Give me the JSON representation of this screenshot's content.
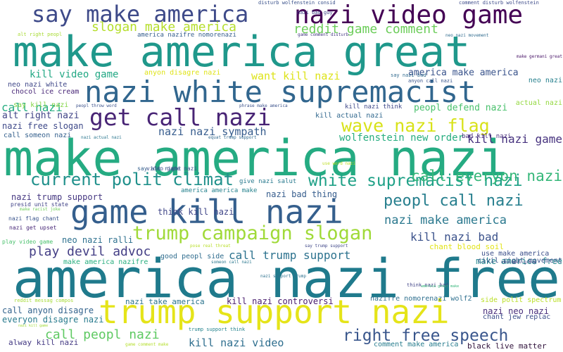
{
  "cloud": {
    "big": [
      "make america great",
      "make america nazi",
      "america nazi free",
      "nazi white supremacist",
      "game kill nazi",
      "trump support nazi",
      "nazi video game",
      "say make america",
      "get call nazi",
      "wave nazi flag",
      "trump campaign slogan",
      "current polit climat",
      "white supremacist nazi",
      "peopl call nazi",
      "right free speech",
      "slogan make america",
      "reddit game comment",
      "call peopl nazi",
      "play devil advoc",
      "nazi make america",
      "call everyon nazi",
      "kill nazi game",
      "kill nazi bad",
      "nazi nazi sympath",
      "kill nazi video",
      "call trump support",
      "want kill nazi",
      "wolfenstein new order",
      "peopl defend nazi",
      "america make america"
    ],
    "mid": [
      "kill video game",
      "alt right nazi",
      "nazi free slogan",
      "nazi trump support",
      "neo nazi ralli",
      "kill nazi controversi",
      "nazi neo nazi",
      "call anyon disagre",
      "everyon disagre nazi",
      "alway kill nazi",
      "comment make america",
      "black live matter",
      "call nazi",
      "neo nazi white",
      "chocol ice cream",
      "say kill nazi",
      "call someon nazi",
      "make america free",
      "think kill nazi",
      "chant blood soil",
      "use make america",
      "civil right movement",
      "nazi take america",
      "make america nazifre",
      "good peopl side",
      "nazifre nomorenazi wolf2",
      "side polit spectrum",
      "chant jew replac",
      "anyon disagre nazi",
      "kill actual nazi",
      "kill nazi think",
      "bad kill nazi",
      "give nazi salut",
      "america america make",
      "nazi bad thing",
      "america nazifre nomorenazi"
    ],
    "small": [
      "disturb wolfenstein consid",
      "comment disturb wolfenstein",
      "nazi bad guy",
      "alt right peopl",
      "game comment disturb",
      "neo nazi movement",
      "anyon call nazi",
      "say nazi bad",
      "make germani great",
      "nazi actual nazi",
      "peopl throw word",
      "phrase make america",
      "equat trump support",
      "use word nazi",
      "actual nazi",
      "neo nazi",
      "say alt right",
      "video game nazi",
      "presid unit state",
      "make racist joke",
      "nazi flag chant",
      "nazi get upset",
      "play video game",
      "pose real threat",
      "nazi support trump",
      "say trump support",
      "think nazi bad",
      "america great make",
      "someon call nazi",
      "neo nazi group",
      "reddit messag compos",
      "trump support think",
      "game comment make",
      "nazi kill game"
    ]
  }
}
